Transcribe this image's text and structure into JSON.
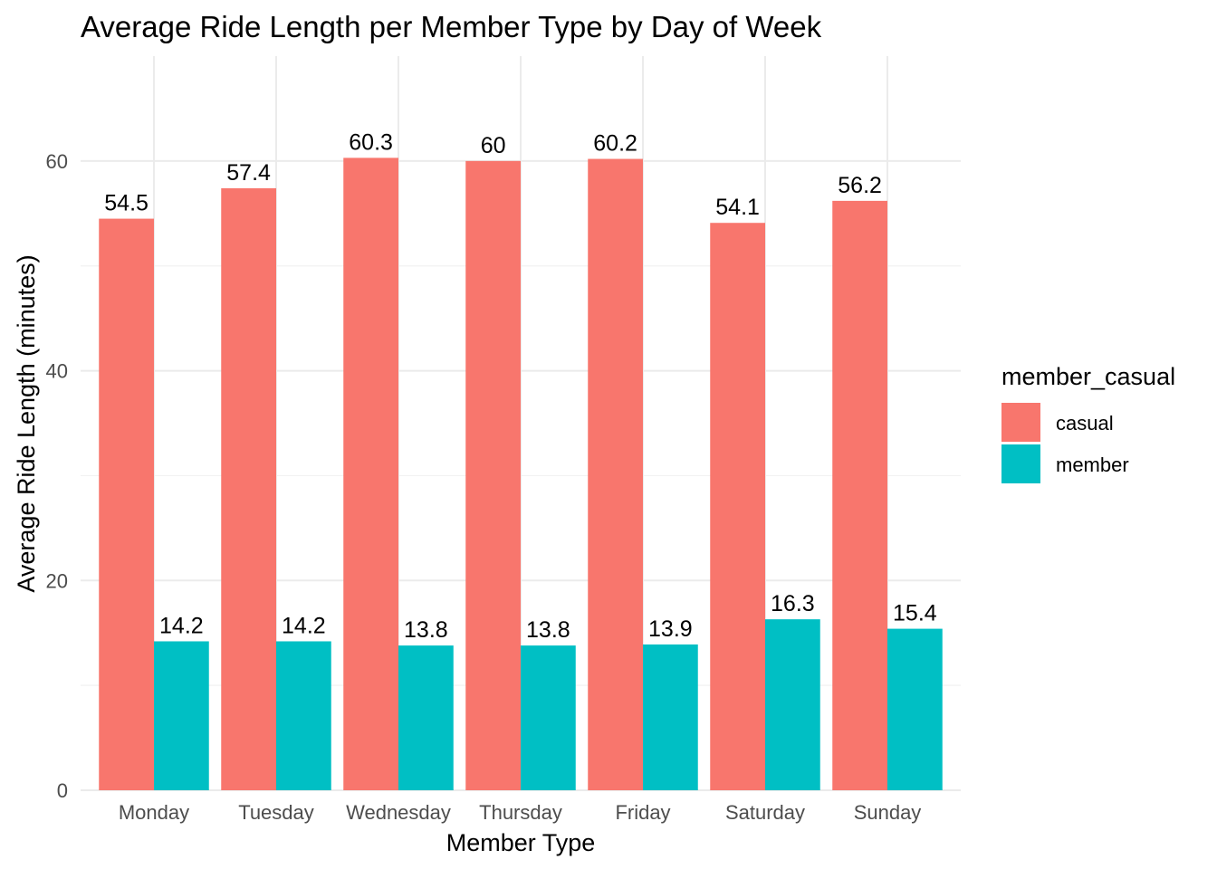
{
  "chart_data": {
    "type": "bar",
    "title": "Average Ride Length per Member Type by Day of Week",
    "xlabel": "Member Type",
    "ylabel": "Average Ride Length (minutes)",
    "categories": [
      "Monday",
      "Tuesday",
      "Wednesday",
      "Thursday",
      "Friday",
      "Saturday",
      "Sunday"
    ],
    "series": [
      {
        "name": "casual",
        "color": "#F8766D",
        "values": [
          54.5,
          57.4,
          60.3,
          60,
          60.2,
          54.1,
          56.2
        ],
        "labels": [
          "54.5",
          "57.4",
          "60.3",
          "60",
          "60.2",
          "54.1",
          "56.2"
        ]
      },
      {
        "name": "member",
        "color": "#00BFC4",
        "values": [
          14.2,
          14.2,
          13.8,
          13.8,
          13.9,
          16.3,
          15.4
        ],
        "labels": [
          "14.2",
          "14.2",
          "13.8",
          "13.8",
          "13.9",
          "16.3",
          "15.4"
        ]
      }
    ],
    "ylim": [
      0,
      70
    ],
    "yticks": [
      0,
      20,
      40,
      60
    ],
    "ytick_labels": [
      "0",
      "20",
      "40",
      "60"
    ],
    "grid": true,
    "legend": {
      "title": "member_casual",
      "position": "right"
    }
  }
}
